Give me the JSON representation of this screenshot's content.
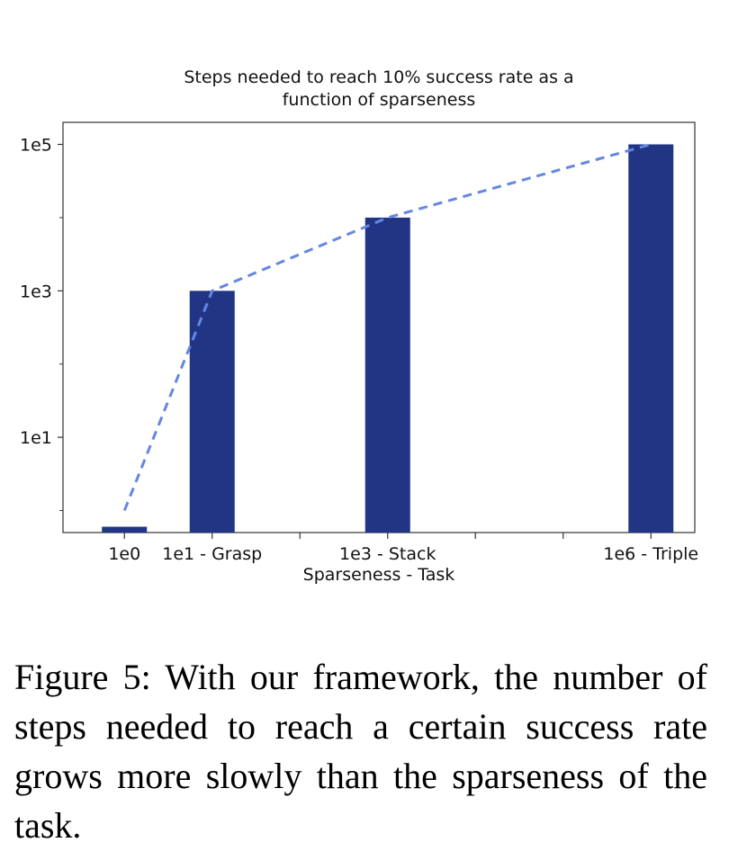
{
  "chart_data": {
    "type": "bar",
    "title_lines": [
      "Steps needed to reach 10% success rate as a",
      "function of sparseness"
    ],
    "xlabel": "Sparseness - Task",
    "ylabel": "",
    "yscale": "log",
    "ylim": [
      0.5,
      200000
    ],
    "y_ticks": [
      {
        "value": 10,
        "label": "1e1"
      },
      {
        "value": 1000,
        "label": "1e3"
      },
      {
        "value": 100000,
        "label": "1e5"
      }
    ],
    "y_minor_ticks": [
      1,
      100,
      10000
    ],
    "x_scale": "log10 of sparseness",
    "x_range": [
      -0.7,
      6.5
    ],
    "categories": [
      {
        "label": "1e0",
        "sparseness": 1,
        "value": 0.6
      },
      {
        "label": "1e1 - Grasp",
        "sparseness": 10,
        "value": 1000
      },
      {
        "label": "1e3 - Stack",
        "sparseness": 1000,
        "value": 10000
      },
      {
        "label": "1e6 - Triple",
        "sparseness": 1000000,
        "value": 100000
      }
    ],
    "x_extra_ticks": [
      2,
      4,
      5
    ],
    "trend_line": {
      "style": "dashed",
      "x": [
        0,
        1,
        3,
        6
      ],
      "y": [
        1,
        1000,
        10000,
        100000
      ]
    },
    "colors": {
      "bar": "#213584",
      "trend": "#6487e3",
      "axis": "#333333"
    },
    "grid": false,
    "legend": "none"
  },
  "caption": "Figure 5: With our framework, the number of steps needed to reach a certain success rate grows more slowly than the sparseness of the task."
}
